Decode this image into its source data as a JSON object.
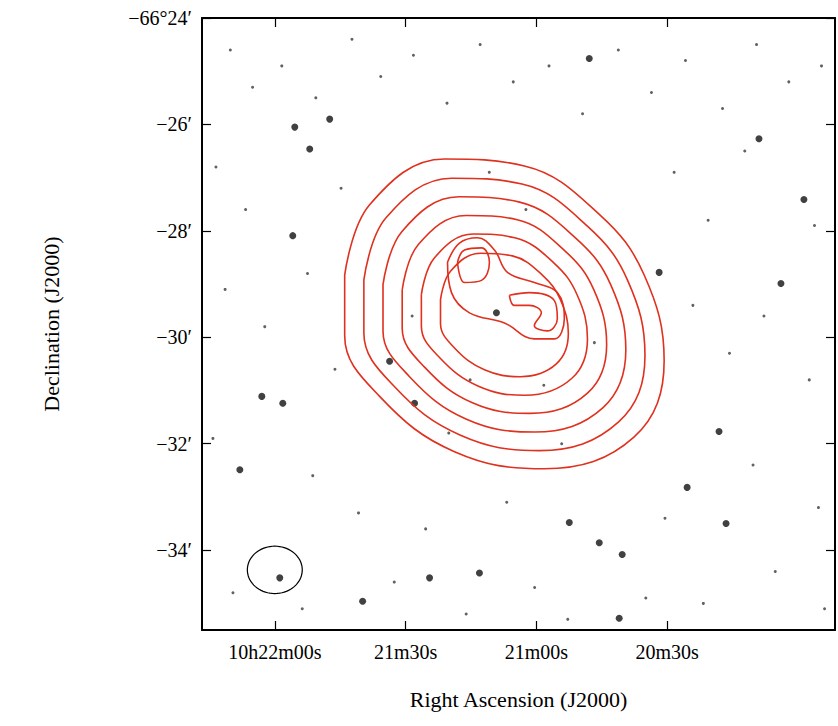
{
  "chart_data": {
    "type": "contour",
    "x_label": "Right Ascension (J2000)",
    "y_label": "Declination (J2000)",
    "xlim": [
      136.7,
      -8.5
    ],
    "ylim": [
      -35.5,
      -24
    ],
    "xticks": [
      {
        "value": 120,
        "label": "10h22m00s"
      },
      {
        "value": 90,
        "label": "21m30s"
      },
      {
        "value": 60,
        "label": "21m00s"
      },
      {
        "value": 30,
        "label": "20m30s"
      }
    ],
    "yticks": [
      {
        "value": -34,
        "label": "−34′"
      },
      {
        "value": -32,
        "label": "−32′"
      },
      {
        "value": -30,
        "label": "−30′"
      },
      {
        "value": -28,
        "label": "−28′"
      },
      {
        "value": -26,
        "label": "−26′"
      },
      {
        "value": -24,
        "label": "−66°24′"
      }
    ],
    "grid": false,
    "color": "#e0301e",
    "contours": [
      [
        [
          103.97,
          -28.83
        ],
        [
          98.25,
          -27.51
        ],
        [
          81.07,
          -26.65
        ],
        [
          62.75,
          -26.78
        ],
        [
          45.57,
          -27.69
        ],
        [
          35.27,
          -28.83
        ],
        [
          30.69,
          -30.44
        ],
        [
          37.56,
          -31.87
        ],
        [
          58.17,
          -32.47
        ],
        [
          78.78,
          -32.15
        ],
        [
          95.96,
          -31.11
        ],
        [
          103.97,
          -29.97
        ]
      ],
      [
        [
          99.57,
          -28.92
        ],
        [
          94.54,
          -27.76
        ],
        [
          79.42,
          -27.01
        ],
        [
          63.3,
          -27.12
        ],
        [
          48.18,
          -27.92
        ],
        [
          39.12,
          -28.92
        ],
        [
          35.09,
          -30.34
        ],
        [
          41.13,
          -31.59
        ],
        [
          59.27,
          -32.13
        ],
        [
          77.41,
          -31.84
        ],
        [
          92.52,
          -30.93
        ],
        [
          99.57,
          -29.92
        ]
      ],
      [
        [
          95.18,
          -29.01
        ],
        [
          90.83,
          -28.01
        ],
        [
          77.77,
          -27.36
        ],
        [
          63.85,
          -27.46
        ],
        [
          50.79,
          -28.15
        ],
        [
          42.96,
          -29.01
        ],
        [
          39.48,
          -30.24
        ],
        [
          44.7,
          -31.32
        ],
        [
          60.37,
          -31.78
        ],
        [
          76.03,
          -31.54
        ],
        [
          89.09,
          -30.74
        ],
        [
          95.18,
          -29.88
        ]
      ],
      [
        [
          90.78,
          -29.11
        ],
        [
          87.12,
          -28.26
        ],
        [
          76.12,
          -27.71
        ],
        [
          64.4,
          -27.79
        ],
        [
          53.4,
          -28.38
        ],
        [
          46.81,
          -29.11
        ],
        [
          43.88,
          -30.14
        ],
        [
          48.28,
          -31.05
        ],
        [
          61.47,
          -31.43
        ],
        [
          74.66,
          -31.23
        ],
        [
          85.65,
          -30.56
        ],
        [
          90.78,
          -29.83
        ]
      ],
      [
        [
          86.38,
          -29.2
        ],
        [
          83.41,
          -28.51
        ],
        [
          74.47,
          -28.06
        ],
        [
          64.95,
          -28.13
        ],
        [
          56.01,
          -28.6
        ],
        [
          50.66,
          -29.2
        ],
        [
          48.28,
          -30.03
        ],
        [
          51.85,
          -30.77
        ],
        [
          62.57,
          -31.09
        ],
        [
          73.28,
          -30.92
        ],
        [
          82.22,
          -30.38
        ],
        [
          86.38,
          -29.79
        ]
      ],
      [
        [
          81.99,
          -29.29
        ],
        [
          79.7,
          -28.76
        ],
        [
          72.83,
          -28.42
        ],
        [
          65.5,
          -28.47
        ],
        [
          58.63,
          -28.83
        ],
        [
          54.51,
          -29.29
        ],
        [
          52.67,
          -29.93
        ],
        [
          55.42,
          -30.5
        ],
        [
          63.67,
          -30.74
        ],
        [
          71.91,
          -30.61
        ],
        [
          78.78,
          -30.2
        ],
        [
          81.99,
          -29.74
        ]
      ],
      [
        [
          80.38,
          -28.59
        ],
        [
          77.64,
          -28.23
        ],
        [
          73.51,
          -28.13
        ],
        [
          69.62,
          -28.36
        ],
        [
          66.64,
          -28.78
        ],
        [
          60.46,
          -28.97
        ],
        [
          55.19,
          -29.16
        ],
        [
          53.59,
          -29.65
        ],
        [
          55.88,
          -30.03
        ],
        [
          60.46,
          -30.03
        ],
        [
          67.33,
          -29.73
        ],
        [
          75.35,
          -29.54
        ],
        [
          79.47,
          -29.16
        ]
      ],
      [
        [
          78.09,
          -28.59
        ],
        [
          76.49,
          -28.36
        ],
        [
          72.6,
          -28.32
        ],
        [
          70.77,
          -28.59
        ],
        [
          72.6,
          -28.93
        ],
        [
          76.49,
          -28.97
        ]
      ],
      [
        [
          66.19,
          -29.21
        ],
        [
          61.61,
          -29.16
        ],
        [
          55.88,
          -29.31
        ],
        [
          55.19,
          -29.65
        ],
        [
          57.48,
          -29.88
        ],
        [
          60.46,
          -29.78
        ],
        [
          58.86,
          -29.54
        ],
        [
          61.61,
          -29.4
        ],
        [
          65.04,
          -29.4
        ]
      ]
    ],
    "bright_stars": [
      [
        115.42,
        -26.05
      ],
      [
        115.88,
        -28.09
      ],
      [
        107.41,
        -25.9
      ],
      [
        128.02,
        -32.49
      ],
      [
        122.98,
        -31.11
      ],
      [
        118.17,
        -31.24
      ],
      [
        118.86,
        -34.52
      ],
      [
        99.85,
        -34.96
      ],
      [
        84.5,
        -34.52
      ],
      [
        45.58,
        -33.86
      ],
      [
        40.31,
        -34.08
      ],
      [
        31.84,
        -28.78
      ],
      [
        3.9,
        -28.99
      ],
      [
        16.49,
        -33.5
      ],
      [
        -1.37,
        -27.41
      ],
      [
        47.87,
        -24.76
      ],
      [
        52.45,
        -33.48
      ],
      [
        93.67,
        -30.45
      ],
      [
        87.94,
        -31.24
      ],
      [
        25.42,
        -32.82
      ],
      [
        8.94,
        -26.27
      ],
      [
        73.06,
        -34.43
      ],
      [
        18.1,
        -31.77
      ],
      [
        111.99,
        -26.46
      ],
      [
        41.0,
        -35.28
      ],
      [
        69.16,
        -29.54
      ]
    ],
    "stars": [
      [
        130.2,
        -24.6
      ],
      [
        125.1,
        -25.3
      ],
      [
        118.4,
        -24.9
      ],
      [
        110.6,
        -25.5
      ],
      [
        102.3,
        -24.4
      ],
      [
        95.7,
        -25.1
      ],
      [
        88.2,
        -24.7
      ],
      [
        80.5,
        -25.6
      ],
      [
        72.9,
        -24.5
      ],
      [
        65.3,
        -25.2
      ],
      [
        57.1,
        -24.9
      ],
      [
        49.4,
        -25.8
      ],
      [
        41.2,
        -24.6
      ],
      [
        33.6,
        -25.4
      ],
      [
        25.8,
        -24.8
      ],
      [
        17.3,
        -25.7
      ],
      [
        9.5,
        -24.5
      ],
      [
        2.1,
        -25.2
      ],
      [
        -5.4,
        -24.9
      ],
      [
        133.5,
        -26.8
      ],
      [
        126.7,
        -27.6
      ],
      [
        104.8,
        -27.2
      ],
      [
        28.4,
        -26.9
      ],
      [
        20.6,
        -27.8
      ],
      [
        12.2,
        -26.5
      ],
      [
        -3.8,
        -27.9
      ],
      [
        131.4,
        -29.1
      ],
      [
        122.3,
        -29.8
      ],
      [
        112.5,
        -28.8
      ],
      [
        106.2,
        -30.6
      ],
      [
        24.1,
        -29.4
      ],
      [
        15.7,
        -30.3
      ],
      [
        7.8,
        -29.6
      ],
      [
        -2.6,
        -30.8
      ],
      [
        134.2,
        -31.9
      ],
      [
        111.3,
        -32.6
      ],
      [
        100.8,
        -33.3
      ],
      [
        85.4,
        -33.6
      ],
      [
        66.8,
        -33.1
      ],
      [
        30.5,
        -33.4
      ],
      [
        10.3,
        -32.4
      ],
      [
        -4.7,
        -33.2
      ],
      [
        129.6,
        -34.8
      ],
      [
        113.7,
        -35.1
      ],
      [
        92.6,
        -34.6
      ],
      [
        76.1,
        -35.2
      ],
      [
        60.4,
        -34.7
      ],
      [
        52.8,
        -35.3
      ],
      [
        34.9,
        -34.9
      ],
      [
        21.7,
        -35.0
      ],
      [
        5.2,
        -34.4
      ],
      [
        -6.1,
        -35.1
      ],
      [
        88.5,
        -29.6
      ],
      [
        75.2,
        -30.8
      ],
      [
        58.3,
        -30.9
      ],
      [
        46.7,
        -30.1
      ],
      [
        80.1,
        -31.8
      ],
      [
        62.4,
        -27.6
      ],
      [
        70.8,
        -26.9
      ],
      [
        54.2,
        -32.0
      ]
    ],
    "beam": {
      "x": 120,
      "y": -34.37,
      "width": 12.6,
      "height": 0.89
    }
  }
}
